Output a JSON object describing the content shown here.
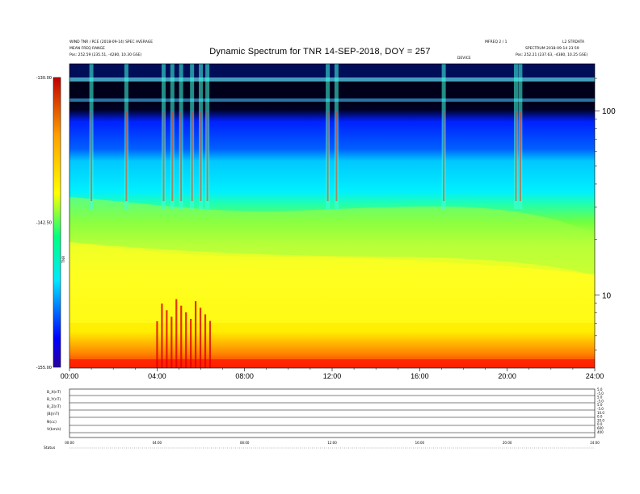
{
  "header": {
    "title": "Dynamic Spectrum for TNR 14-SEP-2018, DOY = 257",
    "left_line1": "WIND  TNR / RCE  (2018-09-14)  SPEC  AVERAGE",
    "left_line2": "MEAN FREQ RANGE",
    "left_line3": "Pos:  252.59 (235.51, -4280, 10.30 GSE)",
    "right_line1": "MFREQ 2 / 1",
    "right_line1b": "L2 STRDATA",
    "right_line2": "SPECTRUM  2018-09-14 23:59",
    "right_line3": "Pos:  252.21 (237.63, -4380, 10.25 GSE)",
    "right_small": "DEVICE"
  },
  "chart_data": {
    "type": "heatmap",
    "title": "Dynamic Spectrum for TNR 14-SEP-2018, DOY = 257",
    "x_axis": {
      "unit": "hours UT",
      "range": [
        0,
        24
      ],
      "tick_labels": [
        "00:00",
        "04:00",
        "08:00",
        "12:00",
        "16:00",
        "20:00",
        "24:00"
      ]
    },
    "y_axis": {
      "scale": "log",
      "range_khz": [
        4,
        180
      ],
      "tick_labels": [
        "100",
        "10"
      ],
      "tick_values": [
        100,
        10
      ]
    },
    "colorbar": {
      "label": "TNR",
      "range": [
        -155.0,
        -130.0
      ],
      "tick_labels": [
        "-130.00",
        "-142.50",
        "-155.00"
      ],
      "colors": [
        "#2a00a0",
        "#0000ff",
        "#0090ff",
        "#00e8ff",
        "#00ff90",
        "#60ff00",
        "#ffff00",
        "#ffa000",
        "#ff2000",
        "#c00000"
      ]
    },
    "bursts_hours": [
      1.0,
      2.6,
      4.3,
      4.7,
      5.1,
      5.6,
      6.0,
      6.3,
      11.8,
      12.2,
      17.1,
      20.4,
      20.6
    ],
    "low_freq_intensification_hours": [
      4.0,
      6.5
    ],
    "bottom_panels": {
      "row_labels": [
        "B_X(nT)",
        "B_Y(nT)",
        "B_Z(nT)",
        "|B|(nT)",
        "N(cc)",
        "V(km/s)"
      ],
      "right_labels": [
        "5.0",
        "-5.0",
        "5.0",
        "-5.0",
        "5.0",
        "-5.0",
        "10.0",
        "0.0",
        "20.0",
        "0.0",
        "600",
        "400"
      ],
      "x_tick_labels": [
        "00:00",
        "04:00",
        "08:00",
        "12:00",
        "16:00",
        "20:00",
        "24:00"
      ],
      "status_label": "Status"
    }
  }
}
